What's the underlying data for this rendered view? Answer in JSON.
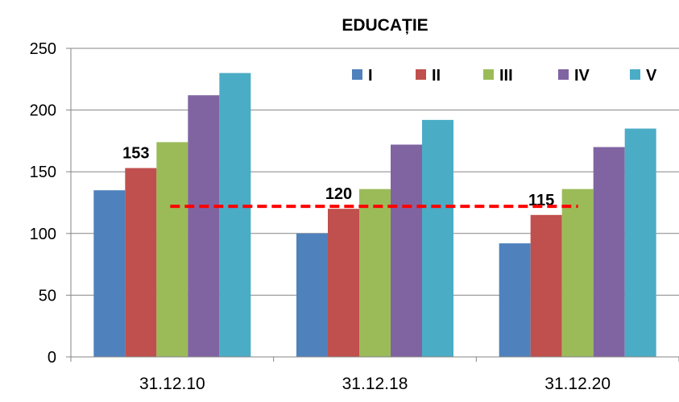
{
  "chart_data": {
    "type": "bar",
    "title": "EDUCAȚIE",
    "xlabel": "",
    "ylabel": "",
    "ylim": [
      0,
      250
    ],
    "yticks": [
      0,
      50,
      100,
      150,
      200,
      250
    ],
    "grid": true,
    "legend_position": "top-right",
    "categories": [
      "31.12.10",
      "31.12.18",
      "31.12.20"
    ],
    "series": [
      {
        "name": "I",
        "color": "#4F81BD",
        "values": [
          135,
          100,
          92
        ]
      },
      {
        "name": "II",
        "color": "#C0504D",
        "values": [
          153,
          120,
          115
        ]
      },
      {
        "name": "III",
        "color": "#9BBB59",
        "values": [
          174,
          136,
          136
        ]
      },
      {
        "name": "IV",
        "color": "#8064A2",
        "values": [
          212,
          172,
          170
        ]
      },
      {
        "name": "V",
        "color": "#4BACC6",
        "values": [
          230,
          192,
          185
        ]
      }
    ],
    "data_labels": [
      {
        "text": "153",
        "category": 0,
        "series": 1
      },
      {
        "text": "120",
        "category": 1,
        "series": 1
      },
      {
        "text": "115",
        "category": 2,
        "series": 1
      }
    ],
    "reference_line": {
      "y": 122,
      "from_category": 0,
      "to_category": 2,
      "color": "#FF0000",
      "style": "dashed"
    }
  }
}
